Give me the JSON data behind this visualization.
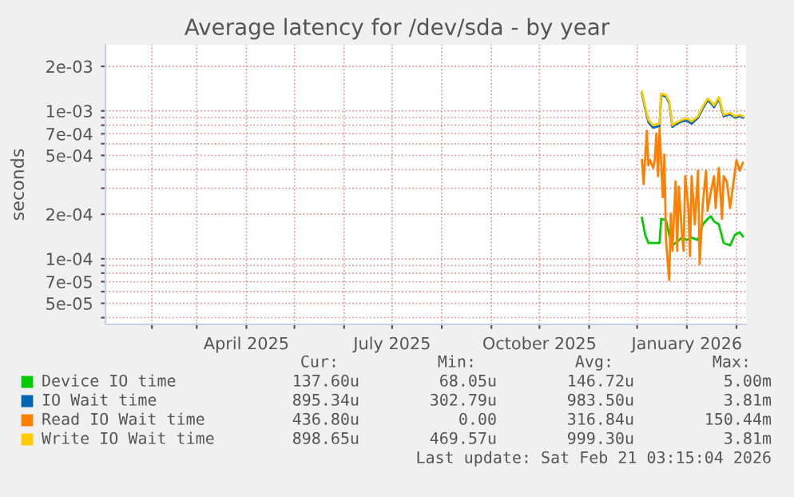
{
  "chart_data": {
    "type": "line",
    "title": "Average latency for /dev/sda - by year",
    "ylabel": "seconds",
    "log": "y",
    "grid": true,
    "legend": "bottom",
    "line_style": "solid",
    "marker": "none",
    "x": [
      "2025-12-04",
      "2025-12-06",
      "2025-12-08",
      "2025-12-11",
      "2025-12-15",
      "2025-12-16",
      "2025-12-19",
      "2025-12-21",
      "2025-12-23",
      "2025-12-25",
      "2025-12-29",
      "2026-01-01",
      "2026-01-04",
      "2026-01-08",
      "2026-01-11",
      "2026-01-14",
      "2026-01-16",
      "2026-01-18",
      "2026-01-21",
      "2026-01-24",
      "2026-01-28",
      "2026-01-31",
      "2026-02-03",
      "2026-02-05"
    ],
    "xlim": [
      "2025-01-03",
      "2026-02-07"
    ],
    "xticks": [
      {
        "value": "2025-02-01",
        "label": null
      },
      {
        "value": "2025-03-01",
        "label": null
      },
      {
        "value": "2025-04-01",
        "label": "April 2025"
      },
      {
        "value": "2025-05-01",
        "label": null
      },
      {
        "value": "2025-06-01",
        "label": null
      },
      {
        "value": "2025-07-01",
        "label": "July 2025"
      },
      {
        "value": "2025-08-01",
        "label": null
      },
      {
        "value": "2025-09-01",
        "label": null
      },
      {
        "value": "2025-10-01",
        "label": "October 2025"
      },
      {
        "value": "2025-11-01",
        "label": null
      },
      {
        "value": "2025-12-01",
        "label": null
      },
      {
        "value": "2026-01-01",
        "label": "January 2026"
      },
      {
        "value": "2026-02-01",
        "label": null
      }
    ],
    "ylim": [
      3.6e-05,
      0.0028
    ],
    "yticks": [
      {
        "value": 4e-05,
        "label": null
      },
      {
        "value": 5e-05,
        "label": "5e-05"
      },
      {
        "value": 6e-05,
        "label": null
      },
      {
        "value": 7e-05,
        "label": "7e-05"
      },
      {
        "value": 8e-05,
        "label": null
      },
      {
        "value": 9e-05,
        "label": null
      },
      {
        "value": 0.0001,
        "label": "1e-04"
      },
      {
        "value": 0.0002,
        "label": "2e-04"
      },
      {
        "value": 0.0003,
        "label": null
      },
      {
        "value": 0.0004,
        "label": null
      },
      {
        "value": 0.0005,
        "label": "5e-04"
      },
      {
        "value": 0.0006,
        "label": null
      },
      {
        "value": 0.0007,
        "label": "7e-04"
      },
      {
        "value": 0.0008,
        "label": null
      },
      {
        "value": 0.0009,
        "label": null
      },
      {
        "value": 0.001,
        "label": "1e-03"
      },
      {
        "value": 0.002,
        "label": "2e-03"
      }
    ],
    "series": [
      {
        "name": "Device IO time",
        "color": "#00cc00",
        "values": [
          0.000189,
          0.000145,
          0.000128,
          0.000128,
          0.000128,
          0.000186,
          0.000183,
          0.000145,
          0.000123,
          0.000128,
          0.000139,
          0.000134,
          0.000139,
          0.000134,
          0.000171,
          0.000186,
          0.000194,
          0.000179,
          0.000171,
          0.000128,
          0.000123,
          0.000145,
          0.000151,
          0.000142
        ]
      },
      {
        "name": "IO Wait time",
        "color": "#0066b3",
        "values": [
          0.00132,
          0.00104,
          0.00084,
          0.00077,
          0.00079,
          0.00128,
          0.00125,
          0.00113,
          0.00078,
          0.00081,
          0.00085,
          0.00086,
          0.00082,
          0.0009,
          0.00104,
          0.00118,
          0.00113,
          0.00106,
          0.00121,
          0.00092,
          0.00095,
          0.0009,
          0.00092,
          0.0009
        ]
      },
      {
        "name": "Read IO Wait time",
        "color": "#ff8000",
        "x": [
          "2025-12-04",
          "2025-12-05",
          "2025-12-07",
          "2025-12-08",
          "2025-12-09",
          "2025-12-11",
          "2025-12-12",
          "2025-12-13",
          "2025-12-14",
          "2025-12-15",
          "2025-12-17",
          "2025-12-18",
          "2025-12-19",
          "2025-12-21",
          "2025-12-22",
          "2025-12-23",
          "2025-12-25",
          "2025-12-26",
          "2025-12-27",
          "2025-12-29",
          "2025-12-30",
          "2025-12-31",
          "2026-01-02",
          "2026-01-03",
          "2026-01-04",
          "2026-01-06",
          "2026-01-08",
          "2026-01-09",
          "2026-01-11",
          "2026-01-13",
          "2026-01-14",
          "2026-01-16",
          "2026-01-18",
          "2026-01-19",
          "2026-01-21",
          "2026-01-23",
          "2026-01-24",
          "2026-01-26",
          "2026-01-28",
          "2026-01-30",
          "2026-02-01",
          "2026-02-03",
          "2026-02-05"
        ],
        "values": [
          0.000465,
          0.00032,
          0.000735,
          0.000428,
          0.000465,
          0.00041,
          0.000465,
          0.000705,
          0.000362,
          0.000766,
          0.00026,
          0.000505,
          0.000134,
          7.2e-05,
          0.000202,
          0.000113,
          0.000333,
          0.000113,
          0.000307,
          0.000145,
          0.000113,
          0.000362,
          0.00022,
          0.000104,
          0.000362,
          0.000171,
          0.000394,
          9.2e-05,
          0.000239,
          0.000394,
          0.000211,
          0.000282,
          0.000362,
          0.00022,
          0.00041,
          0.000186,
          0.000362,
          0.000333,
          0.00022,
          0.00032,
          0.000465,
          0.000394,
          0.000446
        ]
      },
      {
        "name": "Write IO Wait time",
        "color": "#ffcc00",
        "values": [
          0.00135,
          0.00107,
          0.00087,
          0.0008,
          0.00082,
          0.00131,
          0.00128,
          0.00116,
          0.0008,
          0.00083,
          0.00087,
          0.00089,
          0.00085,
          0.00092,
          0.00107,
          0.00121,
          0.00116,
          0.00109,
          0.00124,
          0.00094,
          0.00097,
          0.00092,
          0.00094,
          0.00092
        ]
      }
    ],
    "annotations": [
      "Cur:",
      "Min:",
      "Avg:",
      "Max:",
      "137.60u",
      "68.05u",
      "146.72u",
      "5.00m",
      "895.34u",
      "302.79u",
      "983.50u",
      "3.81m",
      "436.80u",
      "0.00",
      "316.84u",
      "150.44m",
      "898.65u",
      "469.57u",
      "999.30u",
      "3.81m",
      "Last update: Sat Feb 21 03:15:04 2026"
    ]
  }
}
